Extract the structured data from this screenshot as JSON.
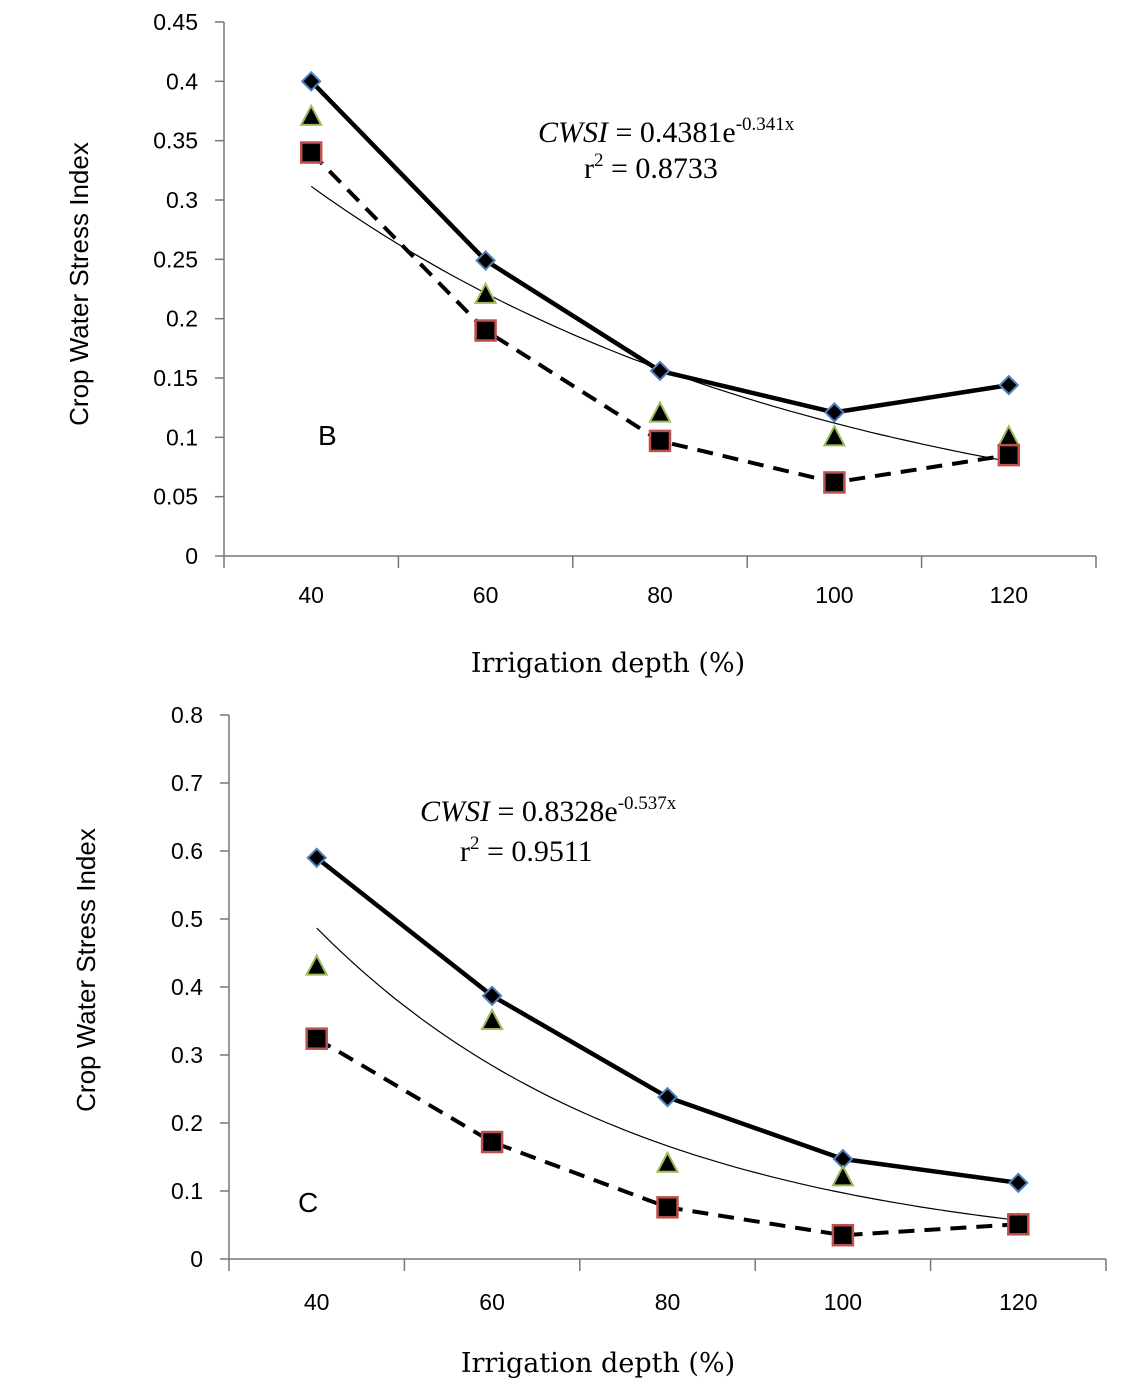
{
  "chart_data": [
    {
      "type": "line",
      "panel_label": "B",
      "xlabel": "Irrigation depth (%)",
      "ylabel": "Crop Water Stress Index",
      "x": [
        40,
        60,
        80,
        100,
        120
      ],
      "ylim": [
        0,
        0.45
      ],
      "yticks": [
        "0",
        "0.05",
        "0.1",
        "0.15",
        "0.2",
        "0.25",
        "0.3",
        "0.35",
        "0.4",
        "0.45"
      ],
      "xticks": [
        "40",
        "60",
        "80",
        "100",
        "120"
      ],
      "series": [
        {
          "marker": "diamond",
          "line": "solid-thick",
          "values": [
            0.4,
            0.249,
            0.156,
            0.121,
            0.144
          ]
        },
        {
          "marker": "triangle",
          "line": "none",
          "values": [
            0.37,
            0.22,
            0.12,
            0.1,
            0.1
          ]
        },
        {
          "marker": "square",
          "line": "dashed",
          "values": [
            0.34,
            0.19,
            0.097,
            0.062,
            0.085
          ]
        }
      ],
      "fit": {
        "a": 0.4381,
        "b": -0.341
      },
      "equation": {
        "lhs": "CWSI",
        "rhs": " = 0.4381e",
        "exp": "-0.341x"
      },
      "r2": {
        "base": "r",
        "sup": "2",
        "rest": " = 0.8733"
      },
      "colors": {
        "diamond_edge": "#4f81bd",
        "triangle_edge": "#9bbb59",
        "square_edge": "#c0504d",
        "fill": "#000000"
      }
    },
    {
      "type": "line",
      "panel_label": "C",
      "xlabel": "Irrigation depth (%)",
      "ylabel": "Crop Water Stress Index",
      "x": [
        40,
        60,
        80,
        100,
        120
      ],
      "ylim": [
        0,
        0.8
      ],
      "yticks": [
        "0",
        "0.1",
        "0.2",
        "0.3",
        "0.4",
        "0.5",
        "0.6",
        "0.7",
        "0.8"
      ],
      "xticks": [
        "40",
        "60",
        "80",
        "100",
        "120"
      ],
      "series": [
        {
          "marker": "diamond",
          "line": "solid-thick",
          "values": [
            0.59,
            0.387,
            0.238,
            0.147,
            0.112
          ]
        },
        {
          "marker": "triangle",
          "line": "none",
          "values": [
            0.43,
            0.35,
            0.14,
            0.12,
            0.05
          ]
        },
        {
          "marker": "square",
          "line": "dashed",
          "values": [
            0.324,
            0.172,
            0.076,
            0.035,
            0.051
          ]
        }
      ],
      "fit": {
        "a": 0.8328,
        "b": -0.537
      },
      "equation": {
        "lhs": "CWSI",
        "rhs": " = 0.8328e",
        "exp": "-0.537x"
      },
      "r2": {
        "base": "r",
        "sup": "2",
        "rest": " = 0.9511"
      },
      "colors": {
        "diamond_edge": "#4f81bd",
        "triangle_edge": "#9bbb59",
        "square_edge": "#c0504d",
        "fill": "#000000"
      }
    }
  ]
}
